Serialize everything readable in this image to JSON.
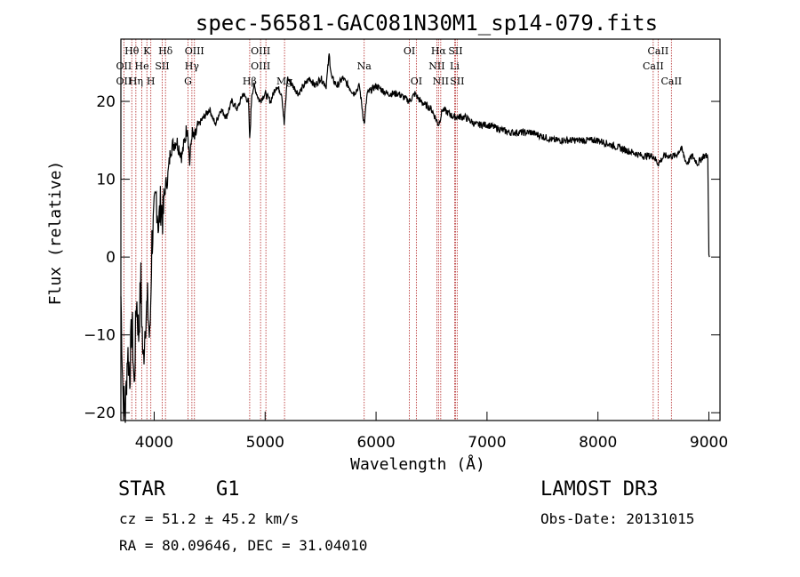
{
  "chart_data": {
    "type": "line",
    "title": "spec-56581-GAC081N30M1_sp14-079.fits",
    "xlabel": "Wavelength (Å)",
    "ylabel": "Flux (relative)",
    "xlim": [
      3700,
      9100
    ],
    "ylim": [
      -21,
      28
    ],
    "xticks": [
      4000,
      5000,
      6000,
      7000,
      8000,
      9000
    ],
    "yticks": [
      -20,
      -10,
      0,
      10,
      20
    ],
    "series": [
      {
        "name": "flux",
        "x": [
          3700,
          3720,
          3740,
          3760,
          3780,
          3800,
          3820,
          3840,
          3860,
          3880,
          3900,
          3920,
          3940,
          3960,
          3980,
          4000,
          4020,
          4040,
          4060,
          4080,
          4100,
          4120,
          4150,
          4200,
          4250,
          4300,
          4320,
          4340,
          4360,
          4400,
          4450,
          4500,
          4550,
          4600,
          4650,
          4700,
          4750,
          4800,
          4850,
          4861,
          4880,
          4900,
          4950,
          5000,
          5050,
          5100,
          5150,
          5172,
          5200,
          5250,
          5300,
          5350,
          5400,
          5450,
          5500,
          5550,
          5577,
          5600,
          5650,
          5700,
          5750,
          5800,
          5850,
          5893,
          5920,
          6000,
          6100,
          6200,
          6300,
          6350,
          6400,
          6500,
          6563,
          6600,
          6700,
          6800,
          6900,
          7000,
          7200,
          7400,
          7600,
          7800,
          8000,
          8200,
          8400,
          8498,
          8542,
          8600,
          8662,
          8700,
          8750,
          8800,
          8850,
          8900,
          8950,
          8990,
          9000,
          9005
        ],
        "y": [
          -5,
          -18,
          -20,
          -12,
          -15,
          -8,
          -17,
          -5,
          -10,
          -3,
          -14,
          -8,
          -6,
          -11,
          2,
          5,
          8,
          4,
          7,
          5,
          9,
          10,
          14,
          15,
          13,
          17,
          12,
          16,
          15,
          17,
          18,
          19,
          17,
          19,
          18,
          20,
          19,
          21,
          20,
          15,
          21,
          22,
          20,
          21,
          20,
          22,
          21,
          17,
          23,
          22,
          21,
          22,
          23,
          22,
          23,
          22,
          26,
          23,
          22,
          23,
          22,
          21,
          22,
          17,
          21,
          22,
          21,
          21,
          20,
          21,
          20,
          19,
          17,
          19,
          18,
          18,
          17,
          17,
          16,
          16,
          15,
          15,
          15,
          14,
          13,
          13,
          12,
          13,
          13,
          13,
          14,
          12,
          13,
          12,
          13,
          13,
          0,
          0
        ]
      }
    ],
    "line_markers": [
      {
        "label": "Hθ",
        "x": 3798,
        "row": 1
      },
      {
        "label": "OII",
        "x": 3727,
        "row": 2
      },
      {
        "label": "OII",
        "x": 3727,
        "row": 3
      },
      {
        "label": "K",
        "x": 3934,
        "row": 1
      },
      {
        "label": "Hδ",
        "x": 4102,
        "row": 1
      },
      {
        "label": "He",
        "x": 3889,
        "row": 2
      },
      {
        "label": "Hη",
        "x": 3835,
        "row": 3
      },
      {
        "label": "SII",
        "x": 4072,
        "row": 2
      },
      {
        "label": "H",
        "x": 3970,
        "row": 3
      },
      {
        "label": "OIII",
        "x": 4363,
        "row": 1
      },
      {
        "label": "Hγ",
        "x": 4340,
        "row": 2
      },
      {
        "label": "G",
        "x": 4305,
        "row": 3
      },
      {
        "label": "OIII",
        "x": 4959,
        "row": 1
      },
      {
        "label": "OIII",
        "x": 4959,
        "row": 2
      },
      {
        "label": "Hβ",
        "x": 4861,
        "row": 3
      },
      {
        "label": "Mg",
        "x": 5175,
        "row": 3
      },
      {
        "label": "Na",
        "x": 5893,
        "row": 2
      },
      {
        "label": "OI",
        "x": 6300,
        "row": 1
      },
      {
        "label": "OI",
        "x": 6363,
        "row": 3
      },
      {
        "label": "Hα",
        "x": 6563,
        "row": 1
      },
      {
        "label": "SII",
        "x": 6716,
        "row": 1
      },
      {
        "label": "NII",
        "x": 6548,
        "row": 2
      },
      {
        "label": "Li",
        "x": 6708,
        "row": 2
      },
      {
        "label": "NII",
        "x": 6583,
        "row": 3
      },
      {
        "label": "SII",
        "x": 6731,
        "row": 3
      },
      {
        "label": "CaII",
        "x": 8542,
        "row": 1
      },
      {
        "label": "CaII",
        "x": 8498,
        "row": 2
      },
      {
        "label": "CaII",
        "x": 8662,
        "row": 3
      }
    ],
    "marker_lines": [
      3727,
      3798,
      3835,
      3889,
      3934,
      3970,
      4072,
      4102,
      4305,
      4340,
      4363,
      4861,
      4959,
      5007,
      5175,
      5893,
      6300,
      6363,
      6548,
      6563,
      6583,
      6708,
      6716,
      6731,
      8498,
      8542,
      8662
    ]
  },
  "info": {
    "object_class": "STAR",
    "subclass": "G1",
    "survey": "LAMOST DR3",
    "cz": "cz = 51.2 ± 45.2 km/s",
    "obs_date": "Obs-Date: 20131015",
    "radec": "RA =  80.09646, DEC =  31.04010"
  }
}
